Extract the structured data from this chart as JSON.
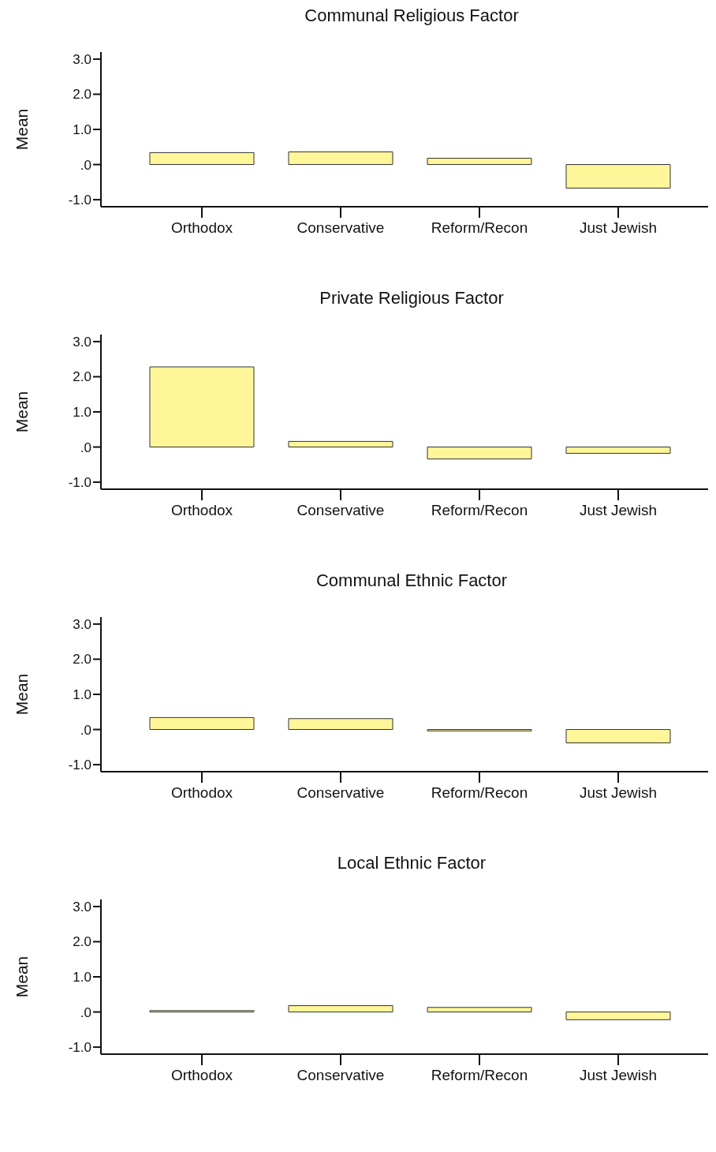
{
  "chart_data": [
    {
      "type": "bar",
      "title": "Communal Religious Factor",
      "ylabel": "Mean",
      "categories": [
        "Orthodox",
        "Conservative",
        "Reform/Recon",
        "Just Jewish"
      ],
      "values": [
        0.34,
        0.36,
        0.18,
        -0.67
      ],
      "color": "#fff599",
      "ylim": [
        -1.2,
        3.2
      ],
      "yticks": [
        {
          "value": -1,
          "label": "-1.0"
        },
        {
          "value": 0,
          "label": ".0"
        },
        {
          "value": 1,
          "label": "1.0"
        },
        {
          "value": 2,
          "label": "2.0"
        },
        {
          "value": 3,
          "label": "3.0"
        }
      ]
    },
    {
      "type": "bar",
      "title": "Private Religious Factor",
      "ylabel": "Mean",
      "categories": [
        "Orthodox",
        "Conservative",
        "Reform/Recon",
        "Just Jewish"
      ],
      "values": [
        2.28,
        0.16,
        -0.34,
        -0.18
      ],
      "color": "#fff599",
      "ylim": [
        -1.2,
        3.2
      ],
      "yticks": [
        {
          "value": -1,
          "label": "-1.0"
        },
        {
          "value": 0,
          "label": ".0"
        },
        {
          "value": 1,
          "label": "1.0"
        },
        {
          "value": 2,
          "label": "2.0"
        },
        {
          "value": 3,
          "label": "3.0"
        }
      ]
    },
    {
      "type": "bar",
      "title": "Communal Ethnic Factor",
      "ylabel": "Mean",
      "categories": [
        "Orthodox",
        "Conservative",
        "Reform/Recon",
        "Just Jewish"
      ],
      "values": [
        0.34,
        0.31,
        -0.04,
        -0.38
      ],
      "color": "#fff599",
      "ylim": [
        -1.2,
        3.2
      ],
      "yticks": [
        {
          "value": -1,
          "label": "-1.0"
        },
        {
          "value": 0,
          "label": ".0"
        },
        {
          "value": 1,
          "label": "1.0"
        },
        {
          "value": 2,
          "label": "2.0"
        },
        {
          "value": 3,
          "label": "3.0"
        }
      ]
    },
    {
      "type": "bar",
      "title": "Local Ethnic Factor",
      "ylabel": "Mean",
      "categories": [
        "Orthodox",
        "Conservative",
        "Reform/Recon",
        "Just Jewish"
      ],
      "values": [
        0.04,
        0.18,
        0.13,
        -0.22
      ],
      "color": "#fff599",
      "ylim": [
        -1.2,
        3.2
      ],
      "yticks": [
        {
          "value": -1,
          "label": "-1.0"
        },
        {
          "value": 0,
          "label": ".0"
        },
        {
          "value": 1,
          "label": "1.0"
        },
        {
          "value": 2,
          "label": "2.0"
        },
        {
          "value": 3,
          "label": "3.0"
        }
      ]
    }
  ]
}
